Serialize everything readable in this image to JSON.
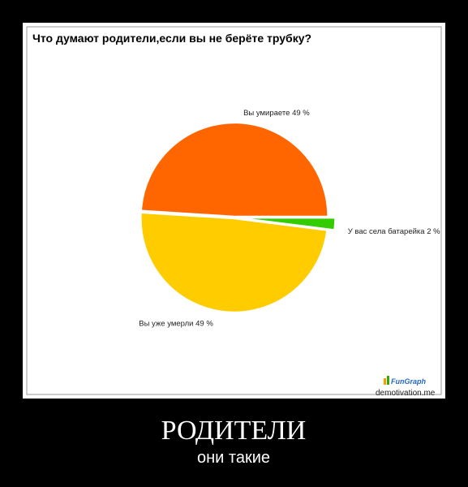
{
  "chart_data": {
    "type": "pie",
    "title": "Что думают родители,если вы не берёте трубку?",
    "categories": [
      "Вы умираете",
      "У вас села батарейка",
      "Вы уже умерли"
    ],
    "values": [
      49,
      2,
      49
    ],
    "value_labels": [
      "49 %",
      "2 %",
      "49 %"
    ],
    "colors": [
      "#ff6600",
      "#33cc00",
      "#ffcc00"
    ],
    "exploded": [
      false,
      true,
      false
    ]
  },
  "poster": {
    "logo": "FunGraph",
    "watermark": "demotivation.me",
    "title": "РОДИТЕЛИ",
    "subtitle": "они такие"
  }
}
